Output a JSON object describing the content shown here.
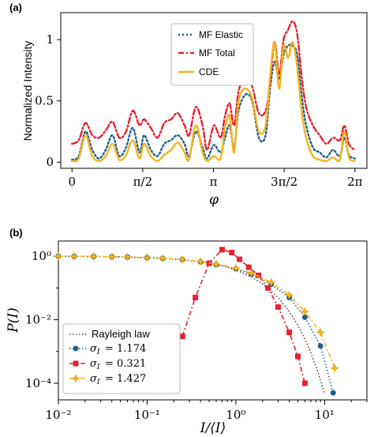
{
  "chart_data": [
    {
      "type": "line",
      "panel_tag": "(a)",
      "xlabel": "φ",
      "ylabel": "Normalized Intensity",
      "xlim": [
        -0.25,
        6.55
      ],
      "ylim": [
        -0.05,
        1.22
      ],
      "xticks": [
        {
          "value": 0,
          "label": "0"
        },
        {
          "value": 1.5708,
          "label": "π/2"
        },
        {
          "value": 3.1416,
          "label": "π"
        },
        {
          "value": 4.7124,
          "label": "3π/2"
        },
        {
          "value": 6.2832,
          "label": "2π"
        }
      ],
      "yticks": [
        {
          "value": 0,
          "label": "0"
        },
        {
          "value": 0.5,
          "label": "0.5"
        },
        {
          "value": 1,
          "label": "1"
        }
      ],
      "legend_position": "upper-center",
      "series": [
        {
          "name": "MF Elastic",
          "color": "#1f5f8b",
          "style": "dotted",
          "x": [
            0,
            0.15,
            0.3,
            0.45,
            0.6,
            0.75,
            0.9,
            1.05,
            1.2,
            1.35,
            1.5,
            1.6,
            1.75,
            1.9,
            2.05,
            2.2,
            2.35,
            2.5,
            2.6,
            2.75,
            2.9,
            3.0,
            3.15,
            3.3,
            3.4,
            3.5,
            3.6,
            3.7,
            3.85,
            4.0,
            4.15,
            4.3,
            4.4,
            4.5,
            4.6,
            4.7,
            4.8,
            4.9,
            5.0,
            5.1,
            5.2,
            5.35,
            5.5,
            5.65,
            5.8,
            5.95,
            6.05,
            6.15,
            6.28
          ],
          "y": [
            0.02,
            0.05,
            0.25,
            0.1,
            0.03,
            0.1,
            0.22,
            0.05,
            0.12,
            0.28,
            0.08,
            0.22,
            0.1,
            0.05,
            0.15,
            0.18,
            0.22,
            0.15,
            0.05,
            0.25,
            0.12,
            0.03,
            0.14,
            0.08,
            0.2,
            0.3,
            0.12,
            0.42,
            0.55,
            0.5,
            0.2,
            0.22,
            0.6,
            0.82,
            0.68,
            0.88,
            0.95,
            0.95,
            0.88,
            0.55,
            0.3,
            0.12,
            0.08,
            0.04,
            0.1,
            0.05,
            0.2,
            0.06,
            0.03
          ]
        },
        {
          "name": "MF Total",
          "color": "#e8202f",
          "style": "dashdot",
          "x": [
            0,
            0.15,
            0.3,
            0.45,
            0.6,
            0.75,
            0.9,
            1.05,
            1.2,
            1.35,
            1.5,
            1.6,
            1.75,
            1.9,
            2.05,
            2.2,
            2.35,
            2.5,
            2.6,
            2.75,
            2.9,
            3.0,
            3.15,
            3.3,
            3.4,
            3.5,
            3.6,
            3.7,
            3.85,
            4.0,
            4.15,
            4.3,
            4.4,
            4.5,
            4.6,
            4.7,
            4.8,
            4.9,
            5.0,
            5.1,
            5.2,
            5.35,
            5.5,
            5.65,
            5.8,
            5.95,
            6.05,
            6.15,
            6.28
          ],
          "y": [
            0.15,
            0.18,
            0.32,
            0.22,
            0.2,
            0.26,
            0.33,
            0.2,
            0.25,
            0.42,
            0.3,
            0.35,
            0.28,
            0.2,
            0.32,
            0.35,
            0.4,
            0.3,
            0.22,
            0.45,
            0.3,
            0.1,
            0.3,
            0.2,
            0.38,
            0.48,
            0.3,
            0.58,
            0.7,
            0.62,
            0.4,
            0.42,
            0.65,
            0.98,
            0.72,
            1.0,
            1.08,
            1.15,
            1.05,
            0.7,
            0.45,
            0.3,
            0.22,
            0.15,
            0.2,
            0.18,
            0.3,
            0.15,
            0.1
          ]
        },
        {
          "name": "CDE",
          "color": "#f5b31a",
          "style": "solid",
          "x": [
            0,
            0.15,
            0.3,
            0.45,
            0.6,
            0.75,
            0.9,
            1.05,
            1.2,
            1.35,
            1.5,
            1.6,
            1.75,
            1.9,
            2.05,
            2.2,
            2.35,
            2.5,
            2.6,
            2.75,
            2.9,
            3.0,
            3.15,
            3.3,
            3.4,
            3.5,
            3.6,
            3.7,
            3.85,
            4.0,
            4.15,
            4.3,
            4.4,
            4.5,
            4.6,
            4.7,
            4.8,
            4.9,
            5.0,
            5.1,
            5.2,
            5.35,
            5.5,
            5.65,
            5.8,
            5.95,
            6.05,
            6.15,
            6.28
          ],
          "y": [
            0.01,
            0.03,
            0.22,
            0.05,
            0.01,
            0.05,
            0.15,
            0.02,
            0.06,
            0.18,
            0.03,
            0.15,
            0.05,
            0.01,
            0.06,
            0.1,
            0.16,
            0.08,
            0.02,
            0.3,
            0.08,
            0.01,
            0.05,
            0.03,
            0.28,
            0.38,
            0.08,
            0.5,
            0.6,
            0.52,
            0.25,
            0.3,
            0.7,
            0.98,
            0.6,
            0.95,
            0.85,
            0.98,
            0.78,
            0.42,
            0.2,
            0.05,
            0.02,
            0.01,
            0.04,
            0.02,
            0.25,
            0.04,
            0.01
          ]
        }
      ]
    },
    {
      "type": "scatter",
      "panel_tag": "(b)",
      "xlabel": "I/⟨I⟩",
      "ylabel": "P(I)",
      "xscale": "log",
      "yscale": "log",
      "xlim": [
        0.01,
        30
      ],
      "ylim": [
        3e-05,
        3
      ],
      "xticks": [
        {
          "value": 0.01,
          "label": "10⁻²"
        },
        {
          "value": 0.1,
          "label": "10⁻¹"
        },
        {
          "value": 1,
          "label": "10⁰"
        },
        {
          "value": 10,
          "label": "10¹"
        }
      ],
      "yticks": [
        {
          "value": 0.0001,
          "label": "10⁻⁴"
        },
        {
          "value": 0.01,
          "label": "10⁻²"
        },
        {
          "value": 1,
          "label": "10⁰"
        }
      ],
      "legend_position": "lower-left",
      "series": [
        {
          "name": "Rayleigh law",
          "color": "#222222",
          "style": "dotted",
          "marker": "none",
          "x": [
            0.01,
            0.02,
            0.05,
            0.1,
            0.2,
            0.3,
            0.5,
            0.7,
            1,
            1.5,
            2,
            3,
            4,
            5,
            6,
            7,
            8,
            9,
            10
          ],
          "y": [
            0.99,
            0.98,
            0.951,
            0.905,
            0.819,
            0.741,
            0.607,
            0.497,
            0.368,
            0.223,
            0.135,
            0.0498,
            0.0183,
            0.00674,
            0.00248,
            0.000912,
            0.000335,
            0.000123,
            4.54e-05
          ]
        },
        {
          "name": "σ_I = 1.174",
          "legend_label": "= 1.174",
          "color": "#1f5f8b",
          "style": "dotted",
          "marker": "circle",
          "x": [
            0.01,
            0.015,
            0.025,
            0.04,
            0.06,
            0.1,
            0.15,
            0.25,
            0.4,
            0.6,
            1,
            1.5,
            2.5,
            4,
            6,
            9,
            12.5
          ],
          "y": [
            1.0,
            0.99,
            0.98,
            0.96,
            0.94,
            0.9,
            0.85,
            0.78,
            0.66,
            0.54,
            0.4,
            0.27,
            0.13,
            0.05,
            0.012,
            0.0015,
            5e-05
          ]
        },
        {
          "name": "σ_I = 0.321",
          "legend_label": "= 0.321",
          "color": "#e8202f",
          "style": "dashdot",
          "marker": "square",
          "x": [
            0.25,
            0.35,
            0.5,
            0.7,
            0.9,
            1.1,
            1.4,
            1.8,
            2.3,
            3,
            4,
            5,
            6
          ],
          "y": [
            0.003,
            0.05,
            0.6,
            1.6,
            1.3,
            0.8,
            0.45,
            0.25,
            0.1,
            0.025,
            0.004,
            0.0007,
            0.0001
          ]
        },
        {
          "name": "σ_I = 1.427",
          "legend_label": "= 1.427",
          "color": "#f5b31a",
          "style": "dashdot",
          "marker": "plus",
          "x": [
            0.01,
            0.015,
            0.025,
            0.04,
            0.06,
            0.1,
            0.15,
            0.25,
            0.4,
            0.6,
            1,
            1.5,
            2.5,
            4,
            6,
            9,
            13
          ],
          "y": [
            1.0,
            0.99,
            0.98,
            0.96,
            0.94,
            0.9,
            0.86,
            0.79,
            0.68,
            0.56,
            0.42,
            0.29,
            0.15,
            0.06,
            0.018,
            0.004,
            0.0003
          ]
        }
      ]
    }
  ]
}
